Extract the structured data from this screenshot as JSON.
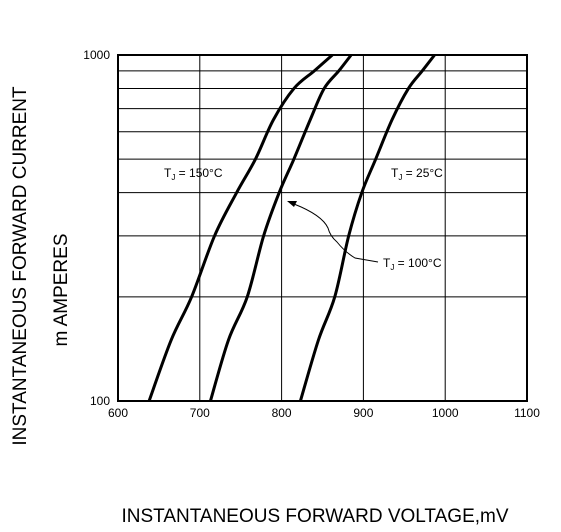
{
  "chart_data": {
    "type": "line",
    "x_scale": "linear",
    "y_scale": "log",
    "xlim": [
      600,
      1100
    ],
    "ylim": [
      100,
      1000
    ],
    "xticks": [
      "600",
      "700",
      "800",
      "900",
      "1000",
      "1100"
    ],
    "yticks": [
      "100",
      "1000"
    ],
    "xlabel": "INSTANTANEOUS FORWARD VOLTAGE,mV",
    "ylabel_line1": "INSTANTANEOUS FORWARD CURRENT",
    "ylabel_line2": "m AMPERES",
    "grid": true,
    "series": [
      {
        "name": "TJ = 150°C",
        "sub": "J",
        "label_text": " = 150°C",
        "points": [
          [
            638,
            100
          ],
          [
            665,
            150
          ],
          [
            690,
            200
          ],
          [
            718,
            300
          ],
          [
            745,
            400
          ],
          [
            768,
            500
          ],
          [
            790,
            650
          ],
          [
            815,
            800
          ],
          [
            840,
            900
          ],
          [
            862,
            1000
          ]
        ]
      },
      {
        "name": "TJ = 100°C",
        "sub": "J",
        "label_text": " = 100°C",
        "points": [
          [
            713,
            100
          ],
          [
            735,
            150
          ],
          [
            758,
            200
          ],
          [
            778,
            300
          ],
          [
            797,
            400
          ],
          [
            815,
            500
          ],
          [
            835,
            650
          ],
          [
            852,
            800
          ],
          [
            870,
            900
          ],
          [
            885,
            1000
          ]
        ]
      },
      {
        "name": "TJ = 25°C",
        "sub": "J",
        "label_text": " = 25°C",
        "points": [
          [
            823,
            100
          ],
          [
            845,
            150
          ],
          [
            865,
            200
          ],
          [
            882,
            300
          ],
          [
            898,
            400
          ],
          [
            915,
            500
          ],
          [
            935,
            650
          ],
          [
            955,
            800
          ],
          [
            972,
            900
          ],
          [
            987,
            1000
          ]
        ]
      }
    ]
  }
}
